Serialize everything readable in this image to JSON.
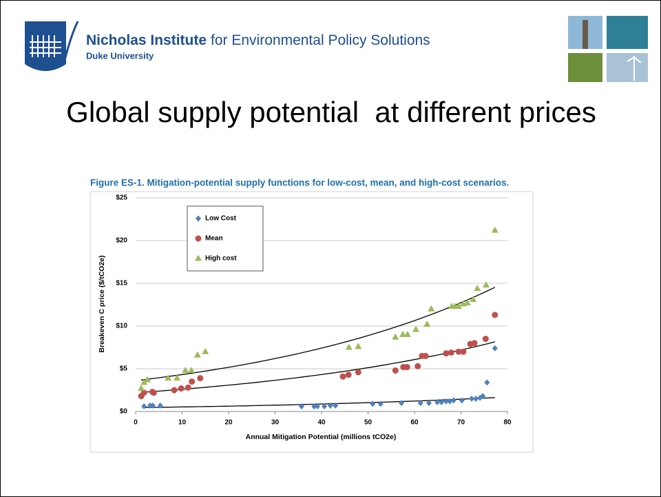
{
  "header": {
    "institute_name": "Nicholas Institute",
    "institute_rest": "for Environmental Policy Solutions",
    "university": "Duke University"
  },
  "slide_title": "Global supply potential  at different prices",
  "chart_data": {
    "type": "scatter",
    "title": "Figure ES-1. Mitigation-potential supply functions for low-cost, mean, and high-cost scenarios.",
    "xlabel": "Annual Mitigation Potential (millions tCO2e)",
    "ylabel": "Breakeven C price ($/tCO2e)",
    "xlim": [
      0,
      80
    ],
    "xticks": [
      0,
      10,
      20,
      30,
      40,
      50,
      60,
      70,
      80
    ],
    "ylim": [
      0,
      25
    ],
    "yticks": [
      {
        "value": 0,
        "label": "$0"
      },
      {
        "value": 5,
        "label": "$5"
      },
      {
        "value": 10,
        "label": "$10"
      },
      {
        "value": 15,
        "label": "$15"
      },
      {
        "value": 20,
        "label": "$20"
      },
      {
        "value": 25,
        "label": "$25"
      }
    ],
    "grid": true,
    "legend": "top-left",
    "trendline": "exponential",
    "series": [
      {
        "name": "Low Cost",
        "color": "#4f81bd",
        "marker": "diamond",
        "x": [
          1.8,
          3.1,
          3.7,
          5.3,
          35.7,
          38.4,
          39.1,
          40.6,
          41.9,
          43,
          51,
          52.7,
          57.2,
          61.3,
          63.1,
          64.9,
          65.8,
          66.8,
          67.6,
          68.4,
          70.2,
          72.3,
          73.2,
          74.1,
          74.7,
          75.6,
          77.3
        ],
        "values": [
          0.6,
          0.7,
          0.7,
          0.7,
          0.6,
          0.6,
          0.6,
          0.6,
          0.7,
          0.7,
          0.9,
          0.9,
          1.0,
          1.0,
          1.0,
          1.1,
          1.1,
          1.2,
          1.2,
          1.3,
          1.3,
          1.5,
          1.5,
          1.6,
          1.8,
          3.4,
          7.4
        ]
      },
      {
        "name": "Mean",
        "color": "#c0504d",
        "marker": "circle",
        "x": [
          1.2,
          1.8,
          3.6,
          3.9,
          8.3,
          9.8,
          11.3,
          12.1,
          13.9,
          44.6,
          45.8,
          47.9,
          55.9,
          57.6,
          58.4,
          60.7,
          61.6,
          62.4,
          66.8,
          67.9,
          69.5,
          70.5,
          72,
          72.9,
          75.3,
          77.3
        ],
        "values": [
          1.8,
          2.2,
          2.3,
          2.2,
          2.5,
          2.7,
          2.8,
          3.5,
          3.9,
          4.1,
          4.3,
          4.6,
          4.8,
          5.2,
          5.2,
          5.3,
          6.5,
          6.5,
          6.8,
          6.9,
          7.0,
          7.0,
          7.9,
          8.0,
          8.5,
          11.3
        ]
      },
      {
        "name": "High cost",
        "color": "#9bbb59",
        "marker": "triangle",
        "x": [
          1.2,
          1.8,
          2.5,
          7,
          8.9,
          10.7,
          12,
          13.3,
          15,
          45.9,
          47.9,
          55.9,
          57.5,
          58.5,
          60.3,
          62.7,
          63.6,
          68,
          68.7,
          69.5,
          70.5,
          71.4,
          72.6,
          73.5,
          75.4,
          77.3
        ],
        "values": [
          2.7,
          3.4,
          3.7,
          3.9,
          3.9,
          4.8,
          4.8,
          6.6,
          7.0,
          7.5,
          7.6,
          8.7,
          9.0,
          9.0,
          9.6,
          10.2,
          12.0,
          12.3,
          12.3,
          12.3,
          12.6,
          12.7,
          13.1,
          14.4,
          14.8,
          21.2
        ]
      }
    ]
  }
}
